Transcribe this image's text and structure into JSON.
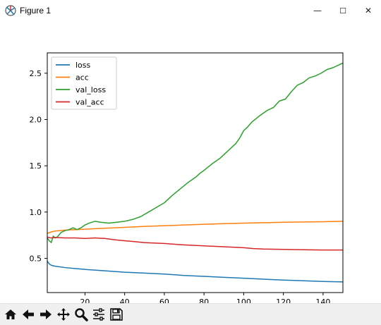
{
  "window": {
    "title": "Figure 1",
    "controls": {
      "minimize": "—",
      "maximize": "☐",
      "close": "✕"
    }
  },
  "toolbar": {
    "tools": [
      "home-icon",
      "back-arrow-icon",
      "forward-arrow-icon",
      "pan-icon",
      "zoom-icon",
      "configure-subplots-icon",
      "save-icon"
    ]
  },
  "chart_data": {
    "type": "line",
    "title": "",
    "xlabel": "",
    "ylabel": "",
    "xlim": [
      1,
      150
    ],
    "ylim": [
      0.13,
      2.72
    ],
    "x_ticks": [
      20,
      40,
      60,
      80,
      100,
      120,
      140
    ],
    "y_ticks": [
      0.5,
      1.0,
      1.5,
      2.0,
      2.5
    ],
    "x_tick_labels": [
      "20",
      "40",
      "60",
      "80",
      "100",
      "120",
      "140"
    ],
    "y_tick_labels": [
      "0.5",
      "1.0",
      "1.5",
      "2.0",
      "2.5"
    ],
    "grid": false,
    "legend": "top-left",
    "series": [
      {
        "name": "loss",
        "color": "#1f77b4",
        "points": [
          [
            1,
            0.47
          ],
          [
            2,
            0.44
          ],
          [
            3,
            0.425
          ],
          [
            5,
            0.415
          ],
          [
            10,
            0.4
          ],
          [
            15,
            0.39
          ],
          [
            20,
            0.38
          ],
          [
            30,
            0.365
          ],
          [
            40,
            0.35
          ],
          [
            50,
            0.34
          ],
          [
            60,
            0.33
          ],
          [
            70,
            0.315
          ],
          [
            80,
            0.305
          ],
          [
            90,
            0.295
          ],
          [
            100,
            0.285
          ],
          [
            110,
            0.275
          ],
          [
            120,
            0.265
          ],
          [
            130,
            0.258
          ],
          [
            140,
            0.25
          ],
          [
            150,
            0.245
          ]
        ]
      },
      {
        "name": "acc",
        "color": "#ff7f0e",
        "points": [
          [
            1,
            0.77
          ],
          [
            3,
            0.785
          ],
          [
            5,
            0.795
          ],
          [
            10,
            0.805
          ],
          [
            20,
            0.815
          ],
          [
            30,
            0.825
          ],
          [
            40,
            0.835
          ],
          [
            50,
            0.845
          ],
          [
            60,
            0.853
          ],
          [
            70,
            0.86
          ],
          [
            80,
            0.868
          ],
          [
            90,
            0.875
          ],
          [
            100,
            0.88
          ],
          [
            110,
            0.885
          ],
          [
            120,
            0.89
          ],
          [
            130,
            0.893
          ],
          [
            140,
            0.896
          ],
          [
            150,
            0.9
          ]
        ]
      },
      {
        "name": "val_loss",
        "color": "#2ca02c",
        "points": [
          [
            1,
            0.72
          ],
          [
            2,
            0.69
          ],
          [
            3,
            0.67
          ],
          [
            4,
            0.74
          ],
          [
            5,
            0.72
          ],
          [
            6,
            0.73
          ],
          [
            8,
            0.78
          ],
          [
            10,
            0.8
          ],
          [
            12,
            0.81
          ],
          [
            14,
            0.83
          ],
          [
            16,
            0.81
          ],
          [
            18,
            0.83
          ],
          [
            20,
            0.86
          ],
          [
            22,
            0.88
          ],
          [
            25,
            0.9
          ],
          [
            28,
            0.89
          ],
          [
            32,
            0.88
          ],
          [
            36,
            0.89
          ],
          [
            40,
            0.9
          ],
          [
            44,
            0.92
          ],
          [
            48,
            0.95
          ],
          [
            52,
            1.0
          ],
          [
            56,
            1.05
          ],
          [
            60,
            1.1
          ],
          [
            64,
            1.18
          ],
          [
            68,
            1.25
          ],
          [
            72,
            1.32
          ],
          [
            76,
            1.38
          ],
          [
            78,
            1.42
          ],
          [
            80,
            1.45
          ],
          [
            84,
            1.52
          ],
          [
            88,
            1.58
          ],
          [
            92,
            1.66
          ],
          [
            96,
            1.74
          ],
          [
            98,
            1.8
          ],
          [
            100,
            1.88
          ],
          [
            102,
            1.92
          ],
          [
            104,
            1.97
          ],
          [
            108,
            2.04
          ],
          [
            112,
            2.1
          ],
          [
            115,
            2.13
          ],
          [
            118,
            2.2
          ],
          [
            121,
            2.22
          ],
          [
            124,
            2.3
          ],
          [
            127,
            2.37
          ],
          [
            130,
            2.4
          ],
          [
            133,
            2.45
          ],
          [
            136,
            2.47
          ],
          [
            139,
            2.5
          ],
          [
            142,
            2.54
          ],
          [
            145,
            2.56
          ],
          [
            148,
            2.59
          ],
          [
            150,
            2.61
          ]
        ]
      },
      {
        "name": "val_acc",
        "color": "#d62728",
        "points": [
          [
            1,
            0.73
          ],
          [
            3,
            0.72
          ],
          [
            5,
            0.725
          ],
          [
            10,
            0.72
          ],
          [
            15,
            0.72
          ],
          [
            20,
            0.715
          ],
          [
            25,
            0.72
          ],
          [
            30,
            0.715
          ],
          [
            35,
            0.7
          ],
          [
            40,
            0.69
          ],
          [
            45,
            0.68
          ],
          [
            50,
            0.67
          ],
          [
            55,
            0.665
          ],
          [
            60,
            0.66
          ],
          [
            70,
            0.645
          ],
          [
            80,
            0.635
          ],
          [
            90,
            0.625
          ],
          [
            100,
            0.615
          ],
          [
            105,
            0.605
          ],
          [
            110,
            0.6
          ],
          [
            120,
            0.597
          ],
          [
            130,
            0.593
          ],
          [
            140,
            0.59
          ],
          [
            150,
            0.59
          ]
        ]
      }
    ]
  }
}
